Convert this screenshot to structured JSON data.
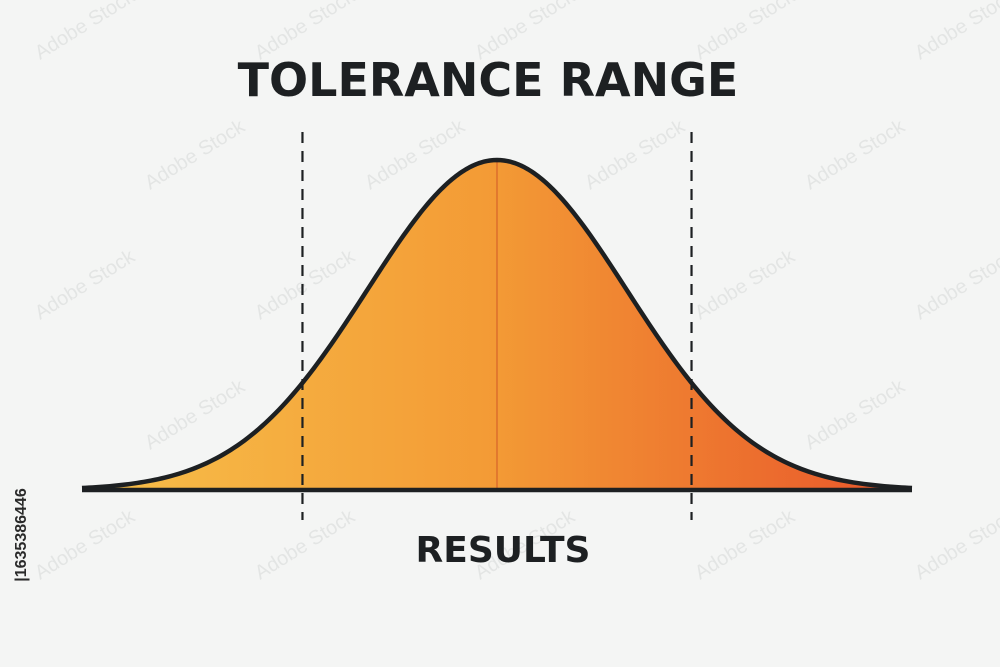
{
  "chart_data": {
    "type": "area",
    "title": "TOLERANCE RANGE",
    "xlabel": "RESULTS",
    "ylabel": "",
    "distribution": "normal",
    "mean": 0,
    "std": 1,
    "xlim": [
      -3.2,
      3.2
    ],
    "ylim": [
      0,
      0.4
    ],
    "limits": {
      "lower": -1.5,
      "upper": 1.5
    },
    "center_line": 0,
    "grid": false,
    "legend": "none"
  },
  "colors": {
    "background": "#f4f5f4",
    "curve_stroke": "#1d2022",
    "fill_left": "#f7c04a",
    "fill_center": "#f39a35",
    "fill_right": "#e8542a",
    "limit_line": "#1d2022",
    "center_line": "#d8632a",
    "text": "#1d2022"
  },
  "side_text": "|1635386446",
  "watermark_text": "Adobe Stock"
}
